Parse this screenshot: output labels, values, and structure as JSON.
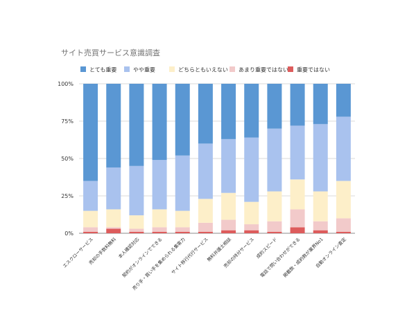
{
  "chart_data": {
    "type": "bar",
    "stacked": "percent",
    "title": "サイト売買サービス意識調査",
    "categories": [
      "エスクローサービス",
      "売却の手数料無料",
      "本人確認対応",
      "契約がオンラインでできる",
      "売り手・買い手を集められる集客力",
      "サイト移行代行サービス",
      "無料弁護士相談",
      "売却の持分サービス",
      "成約スピード",
      "電話で問い合わせができる",
      "掲載数・成約数が業界No1",
      "自動オンライン査定"
    ],
    "series": [
      {
        "name": "重要ではない",
        "color": "#dd5c5c",
        "values": [
          1,
          3,
          1,
          1,
          1,
          1,
          2,
          2,
          1,
          4,
          2,
          1
        ]
      },
      {
        "name": "あまり重要ではない",
        "color": "#f2caca",
        "values": [
          3,
          1,
          2,
          3,
          3,
          6,
          7,
          4,
          7,
          12,
          6,
          9
        ]
      },
      {
        "name": "どちらともいえない",
        "color": "#fdefc9",
        "values": [
          11,
          12,
          9,
          12,
          11,
          16,
          18,
          15,
          20,
          20,
          20,
          25
        ]
      },
      {
        "name": "やや重要",
        "color": "#a9c2ee",
        "values": [
          20,
          28,
          33,
          33,
          37,
          37,
          36,
          43,
          42,
          36,
          45,
          43
        ]
      },
      {
        "name": "とても重要",
        "color": "#5a97d3",
        "values": [
          65,
          56,
          55,
          51,
          48,
          40,
          37,
          36,
          30,
          28,
          27,
          22
        ]
      }
    ],
    "legend_order": [
      "とても重要",
      "やや重要",
      "どちらともいえない",
      "あまり重要ではない",
      "重要ではない"
    ],
    "yticks": [
      "0%",
      "25%",
      "50%",
      "75%",
      "100%"
    ],
    "ylim": [
      0,
      100
    ],
    "grid": true,
    "legend_position": "top"
  }
}
